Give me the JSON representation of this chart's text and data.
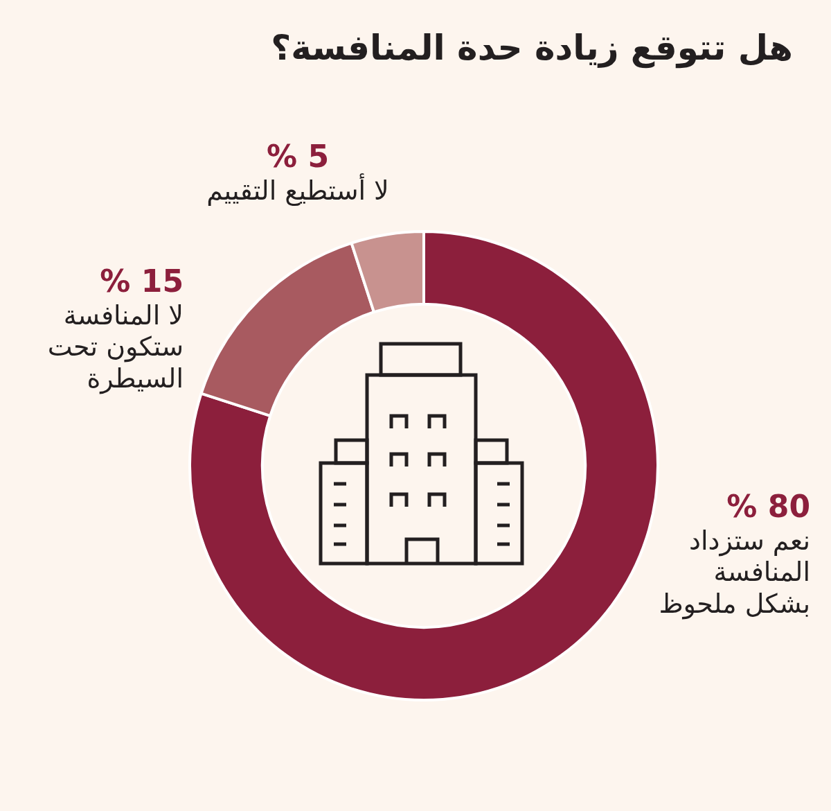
{
  "chart_data": {
    "type": "donut",
    "title": "هل تتوقع زيادة حدة المنافسة؟",
    "categories": [
      "نعم ستزداد المنافسة بشكل ملحوظ",
      "لا المنافسة ستكون تحت السيطرة",
      "لا أستطيع التقييم"
    ],
    "values": [
      80,
      15,
      5
    ],
    "value_labels": [
      "80 %",
      "15 %",
      "5 %"
    ],
    "colors": [
      "#8c1f3c",
      "#a85a60",
      "#c8928f"
    ],
    "legend": false
  }
}
